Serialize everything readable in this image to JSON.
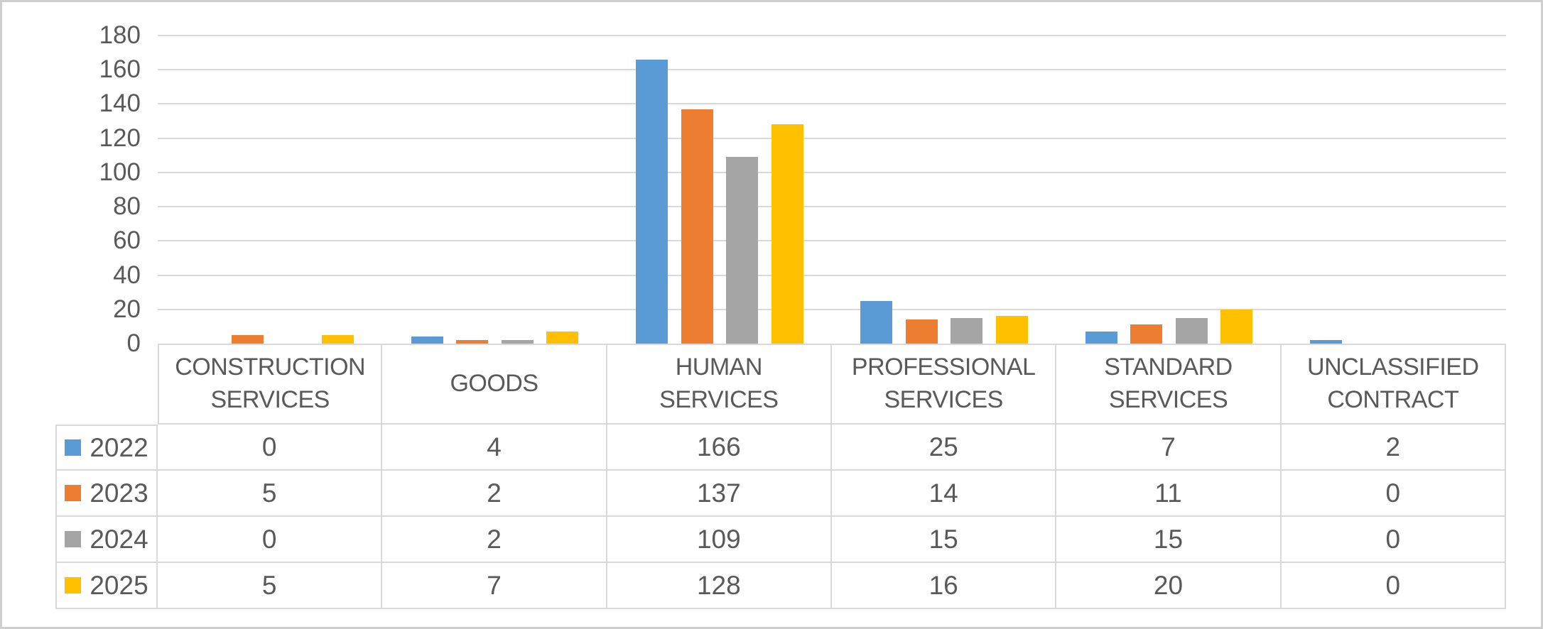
{
  "chart_data": {
    "type": "bar",
    "title": "",
    "xlabel": "",
    "ylabel": "",
    "categories": [
      "CONSTRUCTION SERVICES",
      "GOODS",
      "HUMAN SERVICES",
      "PROFESSIONAL SERVICES",
      "STANDARD SERVICES",
      "UNCLASSIFIED CONTRACT"
    ],
    "series": [
      {
        "name": "2022",
        "color": "#5B9BD5",
        "values": [
          0,
          4,
          166,
          25,
          7,
          2
        ]
      },
      {
        "name": "2023",
        "color": "#ED7D31",
        "values": [
          5,
          2,
          137,
          14,
          11,
          0
        ]
      },
      {
        "name": "2024",
        "color": "#A5A5A5",
        "values": [
          0,
          2,
          109,
          15,
          15,
          0
        ]
      },
      {
        "name": "2025",
        "color": "#FFC000",
        "values": [
          5,
          7,
          128,
          16,
          20,
          0
        ]
      }
    ],
    "ylim": [
      0,
      180
    ],
    "ytick_step": 20,
    "ytick_labels": [
      "0",
      "20",
      "40",
      "60",
      "80",
      "100",
      "120",
      "140",
      "160",
      "180"
    ],
    "grid": true,
    "legend_position": "data-table-left",
    "colors": {
      "gridline": "#D9D9D9",
      "table_border": "#D9D9D9",
      "text": "#595959",
      "background": "#FFFFFF",
      "frame_border": "#CFCFCF"
    }
  }
}
